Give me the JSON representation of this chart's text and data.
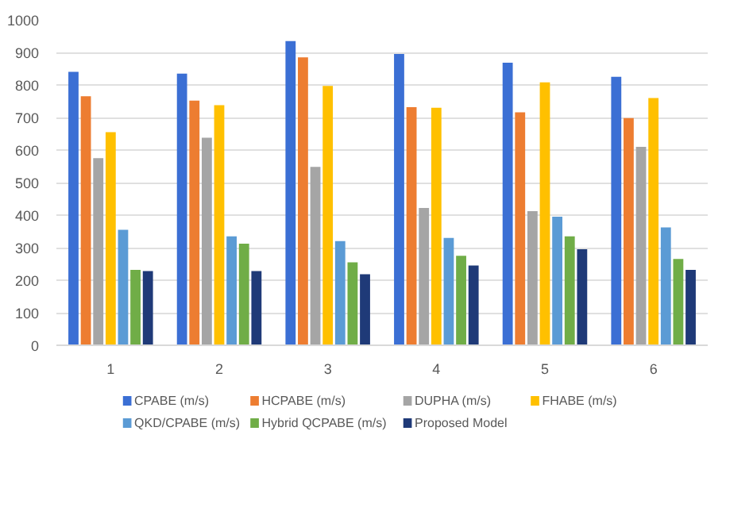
{
  "chart_data": {
    "type": "bar",
    "categories": [
      "1",
      "2",
      "3",
      "4",
      "5",
      "6"
    ],
    "ylim": [
      0,
      1000
    ],
    "yticks": [
      0,
      100,
      200,
      300,
      400,
      500,
      600,
      700,
      800,
      900,
      1000
    ],
    "grid": "y",
    "legend": "bottom",
    "series": [
      {
        "name": "CPABE (m/s)",
        "color": "#3b6fd4",
        "values": [
          840,
          835,
          935,
          895,
          868,
          825
        ]
      },
      {
        "name": "HCPABE (m/s)",
        "color": "#ed7d31",
        "values": [
          765,
          752,
          885,
          732,
          716,
          698
        ]
      },
      {
        "name": "DUPHA (m/s)",
        "color": "#a5a5a5",
        "values": [
          575,
          638,
          548,
          422,
          412,
          610
        ]
      },
      {
        "name": "FHABE (m/s)",
        "color": "#ffc000",
        "values": [
          655,
          738,
          797,
          730,
          808,
          760
        ]
      },
      {
        "name": "QKD/CPABE  (m/s)",
        "color": "#5b9bd5",
        "values": [
          355,
          335,
          320,
          330,
          395,
          362
        ]
      },
      {
        "name": "Hybrid QCPABE (m/s)",
        "color": "#70ad47",
        "values": [
          232,
          312,
          255,
          275,
          335,
          265
        ]
      },
      {
        "name": "Proposed Model",
        "color": "#1f3a78",
        "values": [
          228,
          228,
          218,
          245,
          295,
          232
        ]
      }
    ]
  }
}
